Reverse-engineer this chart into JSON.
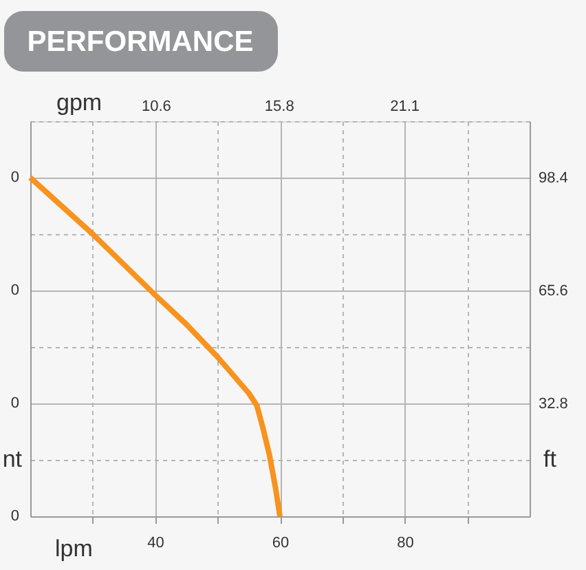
{
  "chart_data": {
    "type": "line",
    "title": "PERFORMANCE",
    "xlabel": "lpm",
    "x2label": "gpm",
    "ylabel": "nt",
    "y2label": "ft",
    "x": [
      20,
      30,
      40,
      45,
      50,
      53,
      55,
      56.3,
      57.2,
      58.3,
      59.3,
      60
    ],
    "series": [
      {
        "color": "#f7931e",
        "axis": "y2",
        "values": [
          98.4,
          82,
          64.3,
          55.8,
          46.3,
          40,
          35.8,
          32.2,
          26.2,
          18,
          8.2,
          0
        ]
      }
    ],
    "xlim": [
      20,
      100
    ],
    "xticks": [
      {
        "value": 30,
        "label": null
      },
      40,
      {
        "value": 50,
        "label": null
      },
      60,
      {
        "value": 70,
        "label": null
      },
      80,
      {
        "value": 90,
        "label": null
      }
    ],
    "x2lim": [
      5.3,
      26.4
    ],
    "x2ticks": [
      10.6,
      15.8,
      21.1
    ],
    "y2lim": [
      0,
      114.8
    ],
    "y2ticks": [
      {
        "value": 16.4,
        "label": null
      },
      32.8,
      {
        "value": 49.2,
        "label": null
      },
      65.6,
      {
        "value": 82,
        "label": null
      },
      98.4
    ],
    "annotations": [
      "0",
      "0",
      "0",
      "0"
    ],
    "grid": true,
    "legend": false,
    "marker": "none",
    "line_style": "solid"
  }
}
